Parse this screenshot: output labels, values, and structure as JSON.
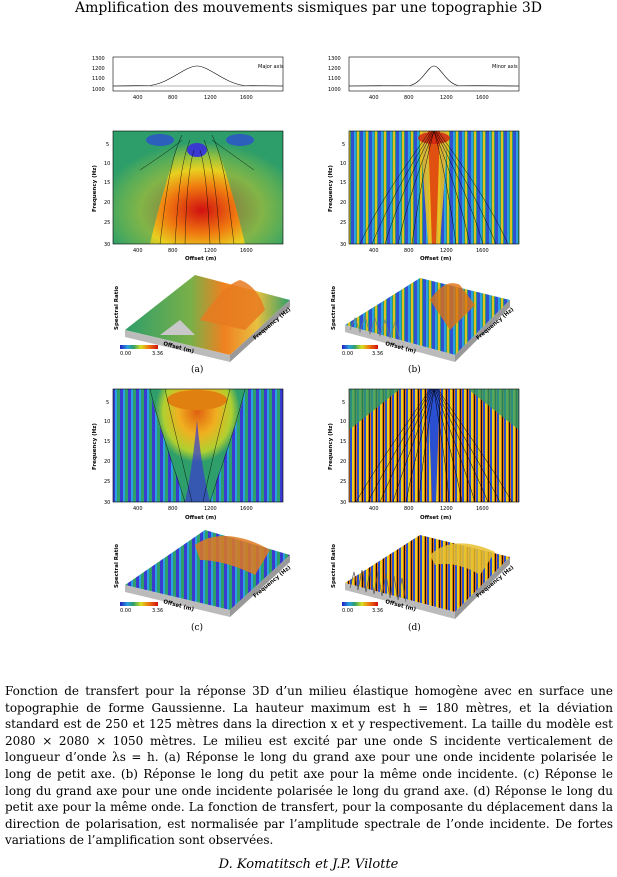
{
  "page": {
    "header": "Amplification des mouvements sismiques par une topographie 3D",
    "footer_authors": "D. Komatitsch et J.P. Vilotte"
  },
  "figure": {
    "profile_axis": {
      "y_ticks": [
        "1300",
        "1200",
        "1100",
        "1000"
      ],
      "x_ticks": [
        "400",
        "800",
        "1200",
        "1600"
      ]
    },
    "profiles": [
      {
        "label": "Major axis"
      },
      {
        "label": "Minor axis"
      }
    ],
    "contour_axis": {
      "ylabel": "Frequency (Hz)",
      "xlabel": "Offset (m)",
      "y_ticks": [
        "5",
        "10",
        "15",
        "20",
        "25",
        "30"
      ],
      "x_ticks": [
        "400",
        "800",
        "1200",
        "1600"
      ]
    },
    "surface_axis": {
      "zlabel": "Spectral Ratio",
      "xlabel": "Offset (m)",
      "ylabel": "Frequency (Hz)",
      "colorbar_min": "0.00",
      "colorbar_max": "3.36"
    },
    "panel_labels": [
      "(a)",
      "(b)",
      "(c)",
      "(d)"
    ]
  },
  "caption": "Fonction de transfert pour la réponse 3D d’un milieu élastique homogène avec en surface une topographie de forme Gaussienne. La hauteur maximum est h = 180 mètres, et la déviation standard est de 250 et 125 mètres dans la direction x et y respectivement. La taille du modèle est 2080 × 2080 × 1050 mètres. Le milieu est excité par une onde S incidente verticalement de longueur d’onde λs = h. (a) Réponse le long du grand axe pour une onde incidente polarisée le long de petit axe. (b) Réponse le long du petit axe pour la même onde incidente. (c) Réponse le long du grand axe pour une onde incidente polarisée le long du grand axe. (d) Réponse le long du petit axe pour la même onde. La fonction de transfert, pour la composante du déplacement dans la direction de polarisation, est normalisée par l’amplitude spectrale de l’onde incidente. De fortes variations de l’amplification sont observées."
}
